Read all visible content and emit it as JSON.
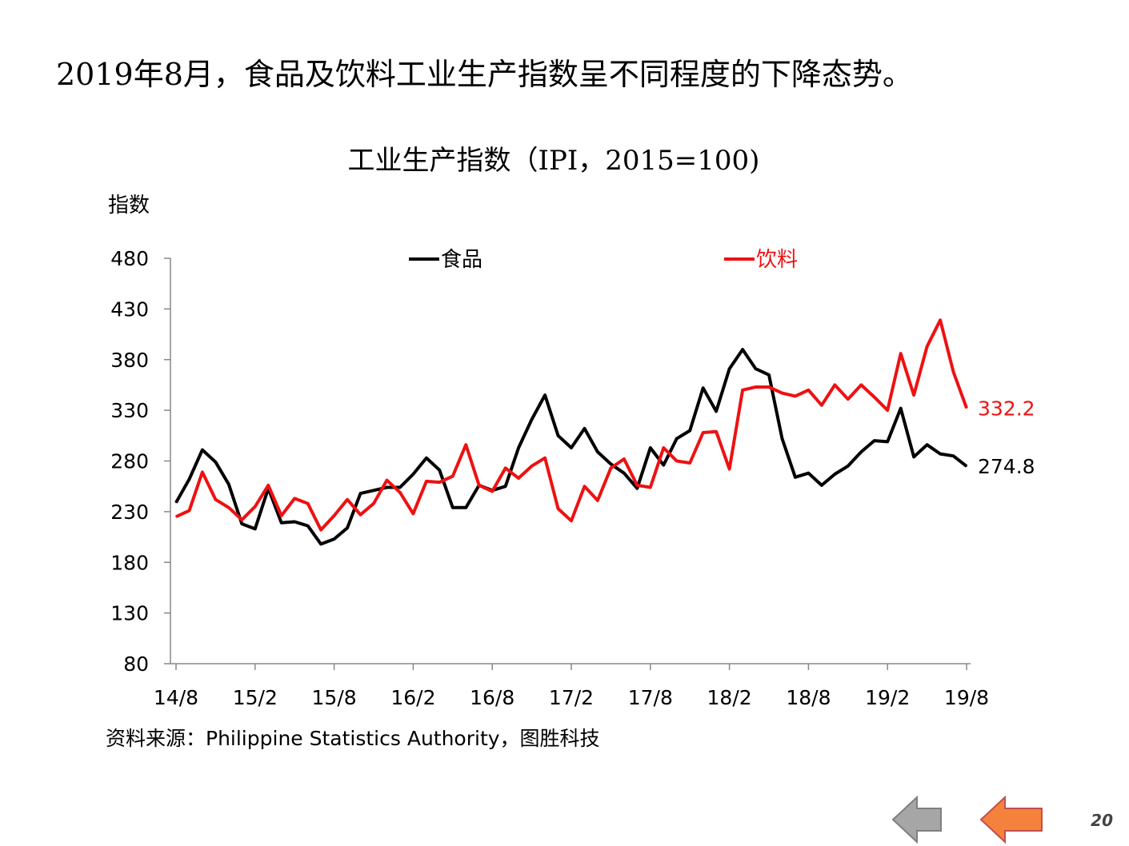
{
  "slide": {
    "headline": "2019年8月，食品及饮料工业生产指数呈不同程度的下降态势。",
    "source": "资料来源：Philippine Statistics Authority，图胜科技",
    "page_number": "20",
    "nav": {
      "back_icon": "left-arrow-icon",
      "prev_icon": "left-arrow-icon"
    }
  },
  "chart_data": {
    "type": "line",
    "title": "工业生产指数（IPI，2015=100)",
    "ylabel": "指数",
    "xlabel": "",
    "ylim": [
      80,
      480
    ],
    "yticks": [
      80,
      130,
      180,
      230,
      280,
      330,
      380,
      430,
      480
    ],
    "xtick_labels": [
      "14/8",
      "15/2",
      "15/8",
      "16/2",
      "16/8",
      "17/2",
      "17/8",
      "18/2",
      "18/8",
      "19/2",
      "19/8"
    ],
    "x_start": "2014-08",
    "x_end": "2019-08",
    "grid": false,
    "legend_position": "top",
    "series": [
      {
        "name": "食品",
        "color": "#000000",
        "end_label": "274.8",
        "values": [
          239,
          262,
          291,
          279,
          257,
          218,
          213,
          253,
          219,
          220,
          216,
          198,
          203,
          214,
          248,
          251,
          254,
          254,
          267,
          283,
          271,
          234,
          234,
          256,
          251,
          255,
          293,
          321,
          345,
          305,
          293,
          312,
          289,
          277,
          268,
          253,
          293,
          276,
          302,
          310,
          352,
          329,
          371,
          390,
          371,
          365,
          302,
          264,
          268,
          256,
          267,
          275,
          289,
          300,
          299,
          332,
          284,
          296,
          287,
          285,
          274.8
        ]
      },
      {
        "name": "饮料",
        "color": "#ee1111",
        "end_label": "332.2",
        "values": [
          225,
          231,
          269,
          242,
          234,
          222,
          235,
          256,
          226,
          243,
          238,
          212,
          226,
          242,
          227,
          238,
          261,
          249,
          228,
          260,
          259,
          265,
          296,
          256,
          250,
          273,
          263,
          275,
          283,
          233,
          221,
          255,
          241,
          273,
          282,
          256,
          254,
          293,
          280,
          278,
          308,
          309,
          272,
          350,
          353,
          353,
          347,
          344,
          350,
          335,
          355,
          341,
          355,
          343,
          330,
          386,
          345,
          393,
          419,
          368,
          332.2
        ]
      }
    ]
  }
}
